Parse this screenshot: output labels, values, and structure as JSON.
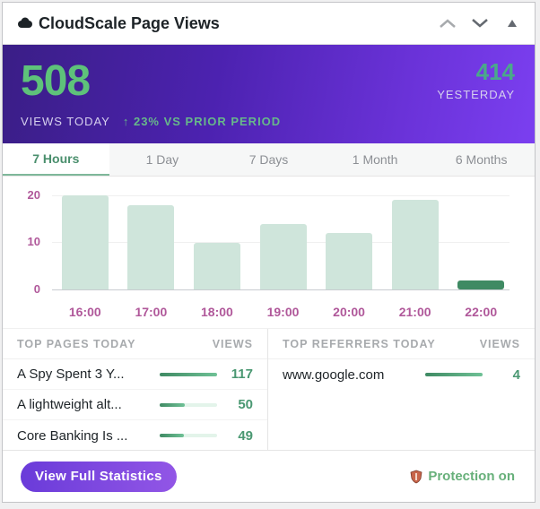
{
  "header": {
    "title": "CloudScale Page Views",
    "icon": "cloud-icon",
    "controls": [
      "chevron-up-icon",
      "chevron-down-icon",
      "triangle-up-icon"
    ]
  },
  "hero": {
    "views_today": "508",
    "views_today_label": "VIEWS TODAY",
    "change": "↑ 23% VS PRIOR PERIOD",
    "yesterday": "414",
    "yesterday_label": "YESTERDAY",
    "colors": {
      "gradient_start": "#3a1e86",
      "gradient_end": "#7b3ff0",
      "big_num": "#5ec27a"
    }
  },
  "tabs": [
    {
      "label": "7 Hours",
      "active": true
    },
    {
      "label": "1 Day",
      "active": false
    },
    {
      "label": "7 Days",
      "active": false
    },
    {
      "label": "1 Month",
      "active": false
    },
    {
      "label": "6 Months",
      "active": false
    }
  ],
  "chart_data": {
    "type": "bar",
    "categories": [
      "16:00",
      "17:00",
      "18:00",
      "19:00",
      "20:00",
      "21:00",
      "22:00"
    ],
    "values": [
      20,
      18,
      10,
      14,
      12,
      19,
      2
    ],
    "highlight_index": 6,
    "yticks": [
      "20",
      "10",
      "0"
    ],
    "ylim": [
      0,
      20
    ],
    "title": "",
    "xlabel": "",
    "ylabel": "",
    "grid": true,
    "colors": {
      "bar": "#cfe5db",
      "highlight": "#3f8a63",
      "tick": "#b0589a"
    }
  },
  "top_pages": {
    "header": "TOP PAGES TODAY",
    "views_header": "VIEWS",
    "rows": [
      {
        "label": "A Spy Spent 3 Y...",
        "value": "117",
        "pct": 100
      },
      {
        "label": "A lightweight alt...",
        "value": "50",
        "pct": 43
      },
      {
        "label": "Core Banking Is ...",
        "value": "49",
        "pct": 42
      }
    ]
  },
  "top_referrers": {
    "header": "TOP REFERRERS TODAY",
    "views_header": "VIEWS",
    "rows": [
      {
        "label": "www.google.com",
        "value": "4",
        "pct": 100
      }
    ]
  },
  "footer": {
    "button_label": "View Full Statistics",
    "protection_label": "Protection on",
    "protection_icon": "shield-icon"
  }
}
